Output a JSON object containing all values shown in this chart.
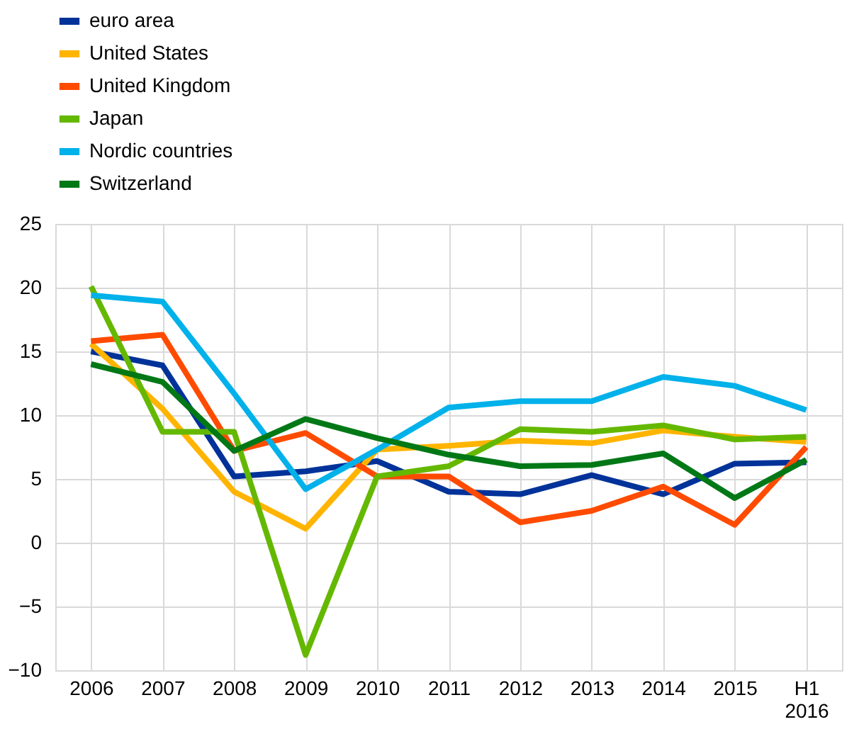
{
  "chart_data": {
    "type": "line",
    "categories": [
      "2006",
      "2007",
      "2008",
      "2009",
      "2010",
      "2011",
      "2012",
      "2013",
      "2014",
      "2015",
      "H1 2016"
    ],
    "series": [
      {
        "name": "euro area",
        "color": "#003299",
        "values": [
          15.0,
          13.9,
          5.2,
          5.6,
          6.4,
          4.0,
          3.8,
          5.3,
          3.8,
          6.2,
          6.3
        ]
      },
      {
        "name": "United States",
        "color": "#ffb400",
        "values": [
          15.6,
          10.5,
          4.0,
          1.1,
          7.3,
          7.6,
          8.0,
          7.8,
          8.8,
          8.3,
          7.9
        ]
      },
      {
        "name": "United Kingdom",
        "color": "#ff4b00",
        "values": [
          15.8,
          16.3,
          7.2,
          8.6,
          5.2,
          5.2,
          1.6,
          2.5,
          4.4,
          1.4,
          7.5
        ]
      },
      {
        "name": "Japan",
        "color": "#65b800",
        "values": [
          20.1,
          8.7,
          8.7,
          -8.8,
          5.2,
          6.0,
          8.9,
          8.7,
          9.2,
          8.1,
          8.3
        ]
      },
      {
        "name": "Nordic countries",
        "color": "#00b1ea",
        "values": [
          19.4,
          18.9,
          11.7,
          4.2,
          7.3,
          10.6,
          11.1,
          11.1,
          13.0,
          12.3,
          10.4
        ]
      },
      {
        "name": "Switzerland",
        "color": "#007816",
        "values": [
          14.0,
          12.6,
          7.2,
          9.7,
          8.2,
          6.9,
          6.0,
          6.1,
          7.0,
          3.5,
          6.5
        ]
      }
    ],
    "ylim": [
      -10,
      25
    ],
    "yticks": [
      -10,
      -5,
      0,
      5,
      10,
      15,
      20,
      25
    ],
    "grid": true,
    "legend": "top left",
    "marker": "none",
    "line_style": "solid"
  }
}
